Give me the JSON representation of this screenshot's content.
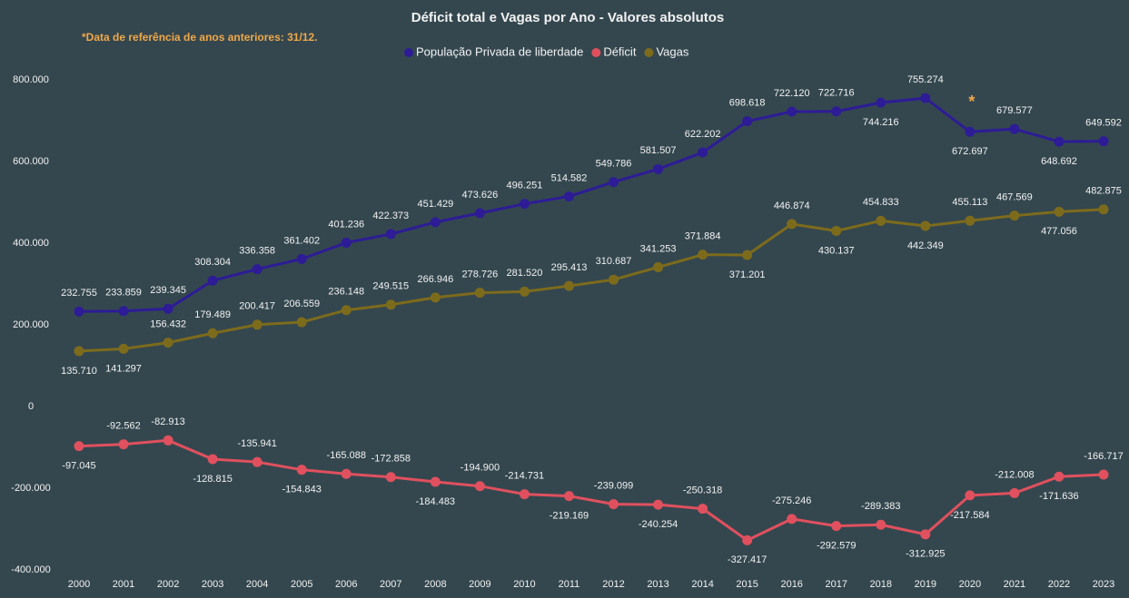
{
  "chart_data": {
    "type": "line",
    "title": "Déficit total e Vagas por Ano - Valores absolutos",
    "note": "*Data de referência de anos anteriores: 31/12.",
    "annotation": {
      "text": "*",
      "category": "2020"
    },
    "categories": [
      "2000",
      "2001",
      "2002",
      "2003",
      "2004",
      "2005",
      "2006",
      "2007",
      "2008",
      "2009",
      "2010",
      "2011",
      "2012",
      "2013",
      "2014",
      "2015",
      "2016",
      "2017",
      "2018",
      "2019",
      "2020",
      "2021",
      "2022",
      "2023"
    ],
    "series": [
      {
        "name": "População Privada de liberdade",
        "color": "#2d1c96",
        "values": [
          232755,
          233859,
          239345,
          308304,
          336358,
          361402,
          401236,
          422373,
          451429,
          473626,
          496251,
          514582,
          549786,
          581507,
          622202,
          698618,
          722120,
          722716,
          744216,
          755274,
          672697,
          679577,
          648692,
          649592
        ],
        "value_labels": [
          "232.755",
          "233.859",
          "239.345",
          "308.304",
          "336.358",
          "361.402",
          "401.236",
          "422.373",
          "451.429",
          "473.626",
          "496.251",
          "514.582",
          "549.786",
          "581.507",
          "622.202",
          "698.618",
          "722.120",
          "722.716",
          "744.216",
          "755.274",
          "672.697",
          "679.577",
          "648.692",
          "649.592"
        ]
      },
      {
        "name": "Déficit",
        "color": "#e0505e",
        "values": [
          -97045,
          -92562,
          -82913,
          -128815,
          -135941,
          -154843,
          -165088,
          -172858,
          -184483,
          -194900,
          -214731,
          -219169,
          -239099,
          -240254,
          -250318,
          -327417,
          -275246,
          -292579,
          -289383,
          -312925,
          -217584,
          -212008,
          -171636,
          -166717
        ],
        "value_labels": [
          "-97.045",
          "-92.562",
          "-82.913",
          "-128.815",
          "-135.941",
          "-154.843",
          "-165.088",
          "-172.858",
          "-184.483",
          "-194.900",
          "-214.731",
          "-219.169",
          "-239.099",
          "-240.254",
          "-250.318",
          "-327.417",
          "-275.246",
          "-292.579",
          "-289.383",
          "-312.925",
          "-217.584",
          "-212.008",
          "-171.636",
          "-166.717"
        ]
      },
      {
        "name": "Vagas",
        "color": "#7d6b1c",
        "values": [
          135710,
          141297,
          156432,
          179489,
          200417,
          206559,
          236148,
          249515,
          266946,
          278726,
          281520,
          295413,
          310687,
          341253,
          371884,
          371201,
          446874,
          430137,
          454833,
          442349,
          455113,
          467569,
          477056,
          482875
        ],
        "value_labels": [
          "135.710",
          "141.297",
          "156.432",
          "179.489",
          "200.417",
          "206.559",
          "236.148",
          "249.515",
          "266.946",
          "278.726",
          "281.520",
          "295.413",
          "310.687",
          "341.253",
          "371.884",
          "371.201",
          "446.874",
          "430.137",
          "454.833",
          "442.349",
          "455.113",
          "467.569",
          "477.056",
          "482.875"
        ]
      }
    ],
    "ylim": [
      -440000,
      860000
    ],
    "yticks": [
      {
        "value": -400000,
        "label": "-400.000"
      },
      {
        "value": -200000,
        "label": "-200.000"
      },
      0,
      {
        "value": 200000,
        "label": "200.000"
      },
      {
        "value": 400000,
        "label": "400.000"
      },
      {
        "value": 600000,
        "label": "600.000"
      },
      {
        "value": 800000,
        "label": "800.000"
      }
    ],
    "grid": false
  }
}
